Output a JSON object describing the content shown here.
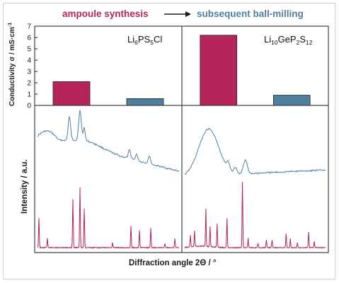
{
  "colors": {
    "ampoule": "#b5245a",
    "ballmill": "#4f7f9f",
    "axis": "#1a1a1a"
  },
  "header": {
    "left": "ampoule synthesis",
    "right": "subsequent ball-milling",
    "arrow": "→"
  },
  "labels": {
    "conductivity_y": "Conductivity σ / mS·cm",
    "conductivity_sup": "-1",
    "intensity_y": "Intensity / a.u.",
    "x": "Diffraction angle 2Θ / °"
  },
  "compounds": {
    "left": {
      "base": "Li",
      "s1": "6",
      "p1": "PS",
      "s2": "5",
      "p2": "Cl"
    },
    "right": {
      "base": "Li",
      "s1": "10",
      "p1": "GeP",
      "s2": "2",
      "p2": "S",
      "s3": "12"
    }
  },
  "chart_data": [
    {
      "type": "bar",
      "title": "",
      "ylabel": "Conductivity σ / mS·cm-1",
      "ylim": [
        0,
        7
      ],
      "yticks": [
        "0",
        "1",
        "2",
        "3",
        "4",
        "5",
        "6",
        "7"
      ],
      "categories": [
        "Li6PS5Cl",
        "Li10GeP2S12"
      ],
      "series": [
        {
          "name": "ampoule synthesis",
          "values": [
            2.1,
            6.2
          ]
        },
        {
          "name": "subsequent ball-milling",
          "values": [
            0.6,
            0.9
          ]
        }
      ]
    },
    {
      "type": "line",
      "title": "",
      "ylabel": "Intensity / a.u.",
      "xlabel": "Diffraction angle 2Θ / °",
      "panels": [
        {
          "compound": "Li6PS5Cl",
          "series": [
            {
              "name": "subsequent ball-milling",
              "x": [
                0,
                0.02,
                0.05,
                0.08,
                0.1,
                0.12,
                0.14,
                0.16,
                0.18,
                0.2,
                0.22,
                0.24,
                0.26,
                0.28,
                0.3,
                0.32,
                0.34,
                0.36,
                0.38,
                0.4,
                0.42,
                0.45,
                0.5,
                0.55,
                0.6,
                0.65,
                0.7,
                0.75,
                0.8,
                0.85,
                0.9,
                0.95,
                1.0
              ],
              "peaks": [
                {
                  "x": 0.225,
                  "h": 0.28,
                  "w": 0.012
                },
                {
                  "x": 0.3,
                  "h": 0.35,
                  "w": 0.013
                },
                {
                  "x": 0.33,
                  "h": 0.15,
                  "w": 0.01
                },
                {
                  "x": 0.65,
                  "h": 0.1,
                  "w": 0.012
                },
                {
                  "x": 0.7,
                  "h": 0.07,
                  "w": 0.012
                },
                {
                  "x": 0.79,
                  "h": 0.09,
                  "w": 0.012
                }
              ]
            },
            {
              "name": "ampoule synthesis",
              "peaks": [
                {
                  "x": 0.01,
                  "h": 0.38
                },
                {
                  "x": 0.07,
                  "h": 0.12
                },
                {
                  "x": 0.25,
                  "h": 0.62
                },
                {
                  "x": 0.3,
                  "h": 0.77
                },
                {
                  "x": 0.33,
                  "h": 0.5
                },
                {
                  "x": 0.53,
                  "h": 0.06
                },
                {
                  "x": 0.66,
                  "h": 0.28
                },
                {
                  "x": 0.72,
                  "h": 0.22
                },
                {
                  "x": 0.8,
                  "h": 0.25
                },
                {
                  "x": 0.9,
                  "h": 0.05
                },
                {
                  "x": 0.97,
                  "h": 0.12
                }
              ]
            }
          ]
        },
        {
          "compound": "Li10GeP2S12",
          "series": [
            {
              "name": "subsequent ball-milling",
              "peaks": [
                {
                  "x": 0.17,
                  "h": 0.55,
                  "w": 0.1
                },
                {
                  "x": 0.31,
                  "h": 0.08,
                  "w": 0.015
                },
                {
                  "x": 0.36,
                  "h": 0.07,
                  "w": 0.015
                },
                {
                  "x": 0.43,
                  "h": 0.16,
                  "w": 0.02
                }
              ]
            },
            {
              "name": "ampoule synthesis",
              "peaks": [
                {
                  "x": 0.04,
                  "h": 0.15
                },
                {
                  "x": 0.07,
                  "h": 0.2
                },
                {
                  "x": 0.15,
                  "h": 0.48
                },
                {
                  "x": 0.18,
                  "h": 0.26
                },
                {
                  "x": 0.23,
                  "h": 0.3
                },
                {
                  "x": 0.3,
                  "h": 0.38
                },
                {
                  "x": 0.41,
                  "h": 0.84
                },
                {
                  "x": 0.45,
                  "h": 0.12
                },
                {
                  "x": 0.52,
                  "h": 0.06
                },
                {
                  "x": 0.58,
                  "h": 0.1
                },
                {
                  "x": 0.62,
                  "h": 0.1
                },
                {
                  "x": 0.72,
                  "h": 0.18
                },
                {
                  "x": 0.75,
                  "h": 0.12
                },
                {
                  "x": 0.8,
                  "h": 0.06
                },
                {
                  "x": 0.88,
                  "h": 0.2
                },
                {
                  "x": 0.92,
                  "h": 0.08
                }
              ]
            }
          ]
        }
      ]
    }
  ]
}
